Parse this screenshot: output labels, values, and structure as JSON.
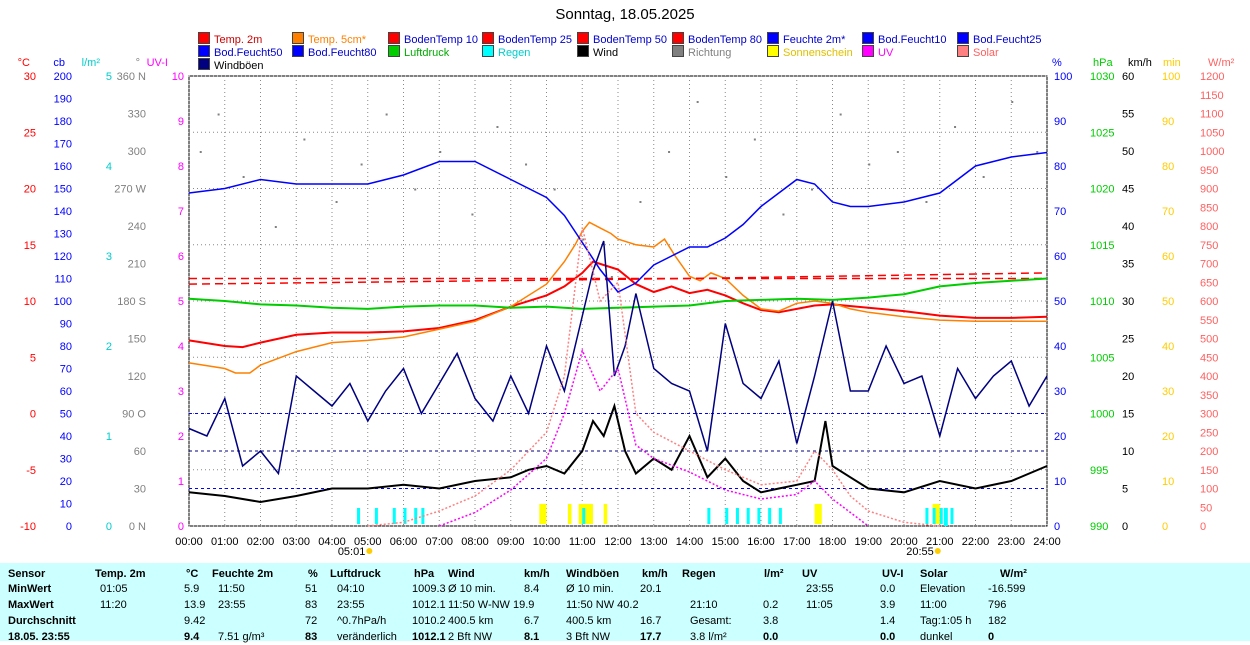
{
  "title": "Sonntag, 18.05.2025",
  "legend": [
    {
      "label": "Temp. 2m",
      "color": "#ff0000"
    },
    {
      "label": "Temp. 5cm*",
      "color": "#ff8000"
    },
    {
      "label": "BodenTemp 10",
      "color": "#ff0000"
    },
    {
      "label": "BodenTemp 25",
      "color": "#ff0000"
    },
    {
      "label": "BodenTemp 50",
      "color": "#ff0000"
    },
    {
      "label": "BodenTemp 80",
      "color": "#ff0000"
    },
    {
      "label": "Feuchte 2m*",
      "color": "#0000ff"
    },
    {
      "label": "Bod.Feucht10",
      "color": "#0000ff"
    },
    {
      "label": "Bod.Feucht25",
      "color": "#0000ff"
    },
    {
      "label": "Bod.Feucht50",
      "color": "#0000ff"
    },
    {
      "label": "Bod.Feucht80",
      "color": "#0000ff"
    },
    {
      "label": "Luftdruck",
      "color": "#00cc00"
    },
    {
      "label": "Regen",
      "color": "#00ffff"
    },
    {
      "label": "Wind",
      "color": "#000000"
    },
    {
      "label": "Richtung",
      "color": "#808080"
    },
    {
      "label": "Sonnenschein",
      "color": "#ffff00"
    },
    {
      "label": "UV",
      "color": "#ff00ff"
    },
    {
      "label": "Solar",
      "color": "#ff8080"
    },
    {
      "label": "Windböen",
      "color": "#000080"
    }
  ],
  "axis_units": {
    "temp": "°C",
    "cb": "cb",
    "rain": "l/m²",
    "dir": "°",
    "uv": "UV-I",
    "hum": "%",
    "press": "hPa",
    "wind": "km/h",
    "sun": "min",
    "solar": "W/m²"
  },
  "axes": {
    "temp": [
      30.0,
      25.0,
      20.0,
      15.0,
      10.0,
      5.0,
      0.0,
      -5.0,
      -10.0
    ],
    "cb": [
      200,
      190,
      180,
      170,
      160,
      150,
      140,
      130,
      120,
      110,
      100,
      90,
      80,
      70,
      60,
      50,
      40,
      30,
      20,
      10,
      0
    ],
    "rain": [
      5.0,
      4.0,
      3.0,
      2.0,
      1.0,
      0.0
    ],
    "dir": [
      "360 N",
      "330",
      "300",
      "270 W",
      "240",
      "210",
      "180 S",
      "150",
      "120",
      "90 O",
      "60",
      "30",
      "0 N"
    ],
    "uv": [
      10.0,
      9.0,
      8.0,
      7.0,
      6.0,
      5.0,
      4.0,
      3.0,
      2.0,
      1.0,
      0.0
    ],
    "hum": [
      100,
      90,
      80,
      70,
      60,
      50,
      40,
      30,
      20,
      10,
      0
    ],
    "press": [
      1030,
      1025,
      1020,
      1015,
      1010,
      1005,
      1000,
      995,
      990
    ],
    "wind": [
      60.0,
      55.0,
      50.0,
      45.0,
      40.0,
      35.0,
      30.0,
      25.0,
      20.0,
      15.0,
      10.0,
      5.0,
      0.0
    ],
    "sun": [
      100,
      90,
      80,
      70,
      60,
      50,
      40,
      30,
      20,
      10,
      0
    ],
    "solar": [
      1200,
      1150,
      1100,
      1050,
      1000,
      950,
      900,
      850,
      800,
      750,
      700,
      650,
      600,
      550,
      500,
      450,
      400,
      350,
      300,
      250,
      200,
      150,
      100,
      50,
      0
    ]
  },
  "time_labels": [
    "00:00",
    "01:00",
    "02:00",
    "03:00",
    "04:00",
    "05:00",
    "06:00",
    "07:00",
    "08:00",
    "09:00",
    "10:00",
    "11:00",
    "12:00",
    "13:00",
    "14:00",
    "15:00",
    "16:00",
    "17:00",
    "18:00",
    "19:00",
    "20:00",
    "21:00",
    "22:00",
    "23:00",
    "24:00"
  ],
  "sunrise": "05:01",
  "sunset": "20:55",
  "chart_data": {
    "type": "line",
    "x_unit": "hour",
    "series": [
      {
        "name": "Temp. 2m",
        "axis": "temp",
        "color": "#ff0000",
        "x": [
          0,
          1,
          1.5,
          2,
          3,
          4,
          5,
          6,
          7,
          8,
          9,
          10,
          10.5,
          11,
          11.3,
          11.6,
          12,
          12.5,
          13,
          13.5,
          14,
          14.5,
          15,
          15.5,
          16,
          16.5,
          17,
          17.5,
          18,
          19,
          20,
          21,
          22,
          23,
          24
        ],
        "y": [
          6.5,
          6.0,
          5.9,
          6.3,
          7.0,
          7.2,
          7.2,
          7.3,
          7.6,
          8.3,
          9.5,
          10.5,
          11.3,
          12.5,
          13.5,
          13.2,
          12.8,
          11.5,
          10.8,
          11.3,
          10.7,
          11.0,
          10.5,
          9.8,
          9.2,
          9.0,
          9.3,
          9.6,
          9.7,
          9.4,
          9.1,
          8.7,
          8.5,
          8.5,
          8.6
        ]
      },
      {
        "name": "Temp. 5cm*",
        "axis": "temp",
        "color": "#ff8000",
        "x": [
          0,
          1,
          1.3,
          1.7,
          2,
          3,
          4,
          5,
          6,
          7,
          8,
          9,
          10,
          10.5,
          10.8,
          11,
          11.2,
          11.5,
          11.8,
          12,
          12.5,
          13,
          13.3,
          13.6,
          14,
          14.3,
          14.6,
          15,
          15.5,
          16,
          16.5,
          17,
          17.5,
          18,
          18.5,
          19,
          20,
          21,
          22,
          23,
          24
        ],
        "y": [
          4.5,
          4.0,
          3.6,
          3.6,
          4.3,
          5.5,
          6.3,
          6.5,
          6.8,
          7.5,
          8.2,
          9.5,
          11.5,
          13.5,
          15.0,
          16.2,
          17.0,
          16.5,
          16.0,
          15.5,
          15.0,
          14.8,
          15.5,
          14.0,
          12.2,
          11.8,
          12.5,
          12.0,
          10.5,
          9.3,
          9.1,
          9.8,
          10.0,
          9.8,
          9.3,
          9.0,
          8.6,
          8.3,
          8.2,
          8.2,
          8.2
        ]
      },
      {
        "name": "BodenTemp 50",
        "axis": "temp",
        "color": "#ff0000",
        "dash": "8,5",
        "x": [
          0,
          24
        ],
        "y": [
          12.0,
          12.0
        ]
      },
      {
        "name": "BodenTemp 80",
        "axis": "temp",
        "color": "#ff0000",
        "dash": "8,5",
        "x": [
          0,
          14,
          24
        ],
        "y": [
          11.5,
          12.0,
          12.5
        ]
      },
      {
        "name": "Feuchte 2m*",
        "axis": "hum",
        "color": "#0000ff",
        "x": [
          0,
          1,
          2,
          3,
          4,
          5,
          6,
          7,
          8,
          9,
          10,
          10.5,
          11,
          11.5,
          12,
          12.5,
          13,
          13.5,
          14,
          14.5,
          15,
          15.5,
          16,
          17,
          17.5,
          18,
          18.5,
          19,
          20,
          21,
          22,
          23,
          24
        ],
        "y": [
          74,
          75,
          77,
          76,
          76,
          76,
          78,
          81,
          81,
          77,
          73,
          69,
          63,
          57,
          52,
          54,
          58,
          60,
          62,
          62,
          64,
          67,
          71,
          77,
          76,
          72,
          71,
          71,
          72,
          74,
          80,
          82,
          83
        ]
      },
      {
        "name": "Luftdruck",
        "axis": "press",
        "color": "#00cc00",
        "x": [
          0,
          1,
          2,
          3,
          4,
          5,
          6,
          7,
          8,
          9,
          10,
          11,
          12,
          13,
          14,
          15,
          16,
          17,
          18,
          19,
          20,
          21,
          22,
          23,
          24
        ],
        "y": [
          1010.2,
          1010.0,
          1009.7,
          1009.6,
          1009.4,
          1009.3,
          1009.5,
          1009.6,
          1009.6,
          1009.4,
          1009.5,
          1009.3,
          1009.4,
          1009.5,
          1009.6,
          1010.0,
          1010.1,
          1010.2,
          1010.1,
          1010.3,
          1010.6,
          1011.3,
          1011.6,
          1011.8,
          1012.0
        ]
      },
      {
        "name": "Wind",
        "axis": "wind",
        "color": "#000000",
        "x": [
          0,
          1,
          2,
          3,
          4,
          5,
          6,
          7,
          8,
          9,
          9.5,
          10,
          10.5,
          11,
          11.3,
          11.6,
          11.9,
          12.2,
          12.5,
          13,
          13.5,
          14,
          14.5,
          15,
          15.5,
          16,
          16.5,
          17,
          17.5,
          17.8,
          18,
          18.5,
          19,
          20,
          21,
          22,
          23,
          24
        ],
        "y": [
          4.5,
          4.0,
          3.2,
          4.0,
          5.0,
          5.0,
          5.5,
          5.0,
          6.0,
          6.5,
          7.5,
          8.0,
          7.0,
          10.0,
          14.0,
          12.0,
          16.0,
          10.0,
          7.0,
          9.0,
          7.5,
          12.0,
          6.5,
          9.0,
          6.0,
          4.5,
          5.0,
          5.5,
          6.0,
          14.0,
          8.0,
          6.5,
          5.0,
          4.5,
          6.0,
          5.0,
          6.0,
          8.0
        ]
      },
      {
        "name": "Windböen",
        "axis": "wind",
        "color": "#000080",
        "x": [
          0,
          0.5,
          1,
          1.5,
          2,
          2.5,
          3,
          3.5,
          4,
          4.5,
          5,
          5.5,
          6,
          6.5,
          7,
          7.5,
          8,
          8.5,
          9,
          9.5,
          10,
          10.5,
          11,
          11.3,
          11.6,
          11.9,
          12.2,
          12.5,
          13,
          13.5,
          14,
          14.5,
          15,
          15.5,
          16,
          16.5,
          17,
          17.5,
          18,
          18.5,
          19,
          19.5,
          20,
          20.5,
          21,
          21.5,
          22,
          22.5,
          23,
          23.5,
          24
        ],
        "y": [
          13,
          12,
          17,
          8,
          10,
          7,
          20,
          18,
          16,
          19,
          14,
          18,
          21,
          15,
          19,
          23,
          17,
          14,
          20,
          15,
          24,
          18,
          28,
          34,
          38,
          20,
          24,
          31,
          21,
          19,
          18,
          10,
          27,
          19,
          17,
          22,
          11,
          20,
          30,
          18,
          18,
          24,
          19,
          20,
          12,
          21,
          17,
          20,
          22,
          16,
          20
        ]
      },
      {
        "name": "Richtung",
        "axis": "dir",
        "color": "#808080",
        "type": "scatter",
        "x": [
          0.3,
          0.8,
          1.5,
          2.4,
          3.2,
          4.1,
          4.8,
          5.5,
          6.3,
          7.0,
          7.9,
          8.6,
          9.4,
          10.2,
          11.0,
          11.8,
          12.6,
          13.4,
          14.2,
          15.0,
          15.8,
          16.6,
          17.4,
          18.2,
          19.0,
          19.8,
          20.6,
          21.4,
          22.2,
          23.0,
          23.7
        ],
        "y": [
          300,
          330,
          280,
          240,
          310,
          260,
          290,
          330,
          270,
          300,
          250,
          320,
          290,
          270,
          230,
          200,
          260,
          300,
          340,
          280,
          310,
          250,
          270,
          330,
          290,
          300,
          260,
          320,
          280,
          340,
          300
        ]
      },
      {
        "name": "UV",
        "axis": "uv",
        "color": "#ff00ff",
        "dash": "2,2",
        "x": [
          7,
          8,
          9,
          10,
          10.5,
          11,
          11.5,
          12,
          12.5,
          13,
          14,
          15,
          16,
          17,
          17.5,
          18,
          18.5,
          19
        ],
        "y": [
          0,
          0.3,
          0.8,
          1.5,
          2.5,
          3.9,
          3.0,
          3.5,
          1.8,
          1.5,
          1.2,
          0.8,
          0.6,
          0.7,
          1.0,
          0.6,
          0.3,
          0
        ]
      },
      {
        "name": "Solar",
        "axis": "solar",
        "color": "#ff8080",
        "dash": "2,2",
        "x": [
          5,
          6,
          7,
          8,
          9,
          10,
          10.5,
          11,
          11.5,
          12,
          12.5,
          13,
          14,
          15,
          16,
          17,
          17.5,
          18,
          18.5,
          19,
          20,
          21
        ],
        "y": [
          0,
          10,
          40,
          80,
          150,
          250,
          400,
          796,
          600,
          650,
          300,
          250,
          200,
          150,
          110,
          120,
          200,
          150,
          80,
          40,
          10,
          0
        ]
      }
    ],
    "rain_bars": [
      {
        "x": 21.17,
        "y": 0.2
      }
    ],
    "sun_bars": [
      {
        "start": 9.8,
        "end": 10.0
      },
      {
        "start": 10.6,
        "end": 10.7
      },
      {
        "start": 10.9,
        "end": 11.3
      },
      {
        "start": 11.6,
        "end": 11.7
      },
      {
        "start": 17.5,
        "end": 17.7
      },
      {
        "start": 20.8,
        "end": 21.0
      }
    ],
    "rain_marks": [
      4.7,
      5.2,
      5.7,
      6.0,
      6.3,
      6.5,
      11.0,
      14.5,
      15.0,
      15.3,
      15.6,
      15.9,
      16.2,
      16.5,
      20.6,
      20.8,
      21.0,
      21.3
    ]
  },
  "stats": {
    "headers": [
      "Sensor",
      "Temp. 2m",
      "°C",
      "Feuchte 2m",
      "%",
      "Luftdruck",
      "hPa",
      "Wind",
      "km/h",
      "Windböen",
      "km/h",
      "Regen",
      "l/m²",
      "UV",
      "UV-I",
      "Solar",
      "W/m²"
    ],
    "rows": [
      {
        "label": "MinWert",
        "cells": [
          "01:05",
          "5.9",
          "11:50",
          "51",
          "04:10",
          "1009.3",
          "Ø 10 min.",
          "8.4",
          "Ø 10 min.",
          "20.1",
          "",
          "",
          "23:55",
          "0.0",
          "Elevation",
          "-16.599"
        ]
      },
      {
        "label": "MaxWert",
        "cells": [
          "11:20",
          "13.9",
          "23:55",
          "83",
          "23:55",
          "1012.1",
          "11:50  W-NW 19.9",
          "",
          "11:50   NW 40.2",
          "",
          "21:10",
          "0.2",
          "11:05",
          "3.9",
          "11:00",
          "796"
        ]
      },
      {
        "label": "Durchschnitt",
        "cells": [
          "",
          "9.42",
          "",
          "72",
          "^0.7hPa/h",
          "1010.2",
          "400.5 km",
          "6.7",
          "400.5 km",
          "16.7",
          "Gesamt:",
          "3.8",
          "",
          "1.4",
          "Tag:1:05 h",
          "182"
        ]
      },
      {
        "label": "18.05. 23:55",
        "cells": [
          "",
          "9.4",
          "7.51 g/m³",
          "83",
          "veränderlich",
          "1012.1",
          "2 Bft NW",
          "8.1",
          "3 Bft NW",
          "17.7",
          "3.8 l/m²",
          "0.0",
          "",
          "0.0",
          "dunkel",
          "0"
        ]
      }
    ]
  }
}
